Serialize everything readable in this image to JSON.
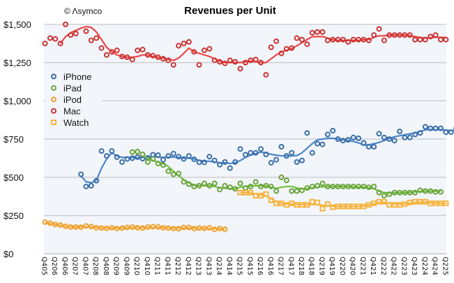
{
  "chart_data": {
    "type": "scatter",
    "title": "Revenues per Unit",
    "credit": "© Λsymco",
    "xlabel": "",
    "ylabel": "",
    "ylim": [
      0,
      1500
    ],
    "yticks": [
      "$0",
      "$250",
      "$500",
      "$750",
      "$1,000",
      "$1,250",
      "$1,500"
    ],
    "ytick_values": [
      0,
      250,
      500,
      750,
      1000,
      1250,
      1500
    ],
    "grid": true,
    "legend_position": "left",
    "x_start": "Q405",
    "x_end": "Q225",
    "xticks": [
      "Q405",
      "Q206",
      "Q406",
      "Q207",
      "Q407",
      "Q208",
      "Q408",
      "Q209",
      "Q409",
      "Q210",
      "Q410",
      "Q211",
      "Q411",
      "Q212",
      "Q412",
      "Q213",
      "Q413",
      "Q214",
      "Q414",
      "Q215",
      "Q415",
      "Q216",
      "Q416",
      "Q217",
      "Q417",
      "Q218",
      "Q418",
      "Q219",
      "Q419",
      "Q220",
      "Q420",
      "Q221",
      "Q421",
      "Q222",
      "Q422",
      "Q223",
      "Q423",
      "Q224",
      "Q424",
      "Q225"
    ],
    "series": [
      {
        "name": "iPhone",
        "color": "#3a6ea8",
        "line_color": "#4a86c8",
        "marker": "circle",
        "start_index": 7,
        "values": [
          520,
          440,
          445,
          478,
          672,
          640,
          672,
          632,
          600,
          620,
          625,
          632,
          622,
          627,
          648,
          645,
          615,
          640,
          655,
          635,
          620,
          640,
          618,
          598,
          598,
          635,
          610,
          582,
          600,
          560,
          600,
          685,
          648,
          660,
          660,
          685,
          650,
          595,
          615,
          700,
          640,
          660,
          600,
          610,
          790,
          660,
          720,
          715,
          780,
          805,
          750,
          740,
          745,
          760,
          755,
          725,
          700,
          700,
          785,
          760,
          750,
          740,
          800,
          760,
          760,
          780,
          790,
          830,
          820,
          820,
          820,
          795,
          795,
          820,
          830,
          830,
          808,
          830
        ],
        "trend": [
          510,
          470,
          465,
          480,
          560,
          620,
          660,
          640,
          630,
          630,
          630,
          628,
          630,
          630,
          635,
          632,
          630,
          632,
          632,
          630,
          625,
          625,
          620,
          612,
          605,
          605,
          600,
          595,
          595,
          590,
          595,
          610,
          630,
          645,
          655,
          665,
          660,
          650,
          645,
          640,
          640,
          640,
          642,
          660,
          690,
          720,
          745,
          750,
          755,
          755,
          750,
          745,
          740,
          735,
          725,
          710,
          712,
          720,
          728,
          740,
          755,
          765,
          772,
          778,
          784,
          790,
          800,
          810,
          812,
          810,
          812,
          808,
          806,
          810,
          815,
          818,
          815,
          815
        ]
      },
      {
        "name": "iPad",
        "color": "#6aa33a",
        "line_color": "#6fbf3c",
        "marker": "circle",
        "start_index": 17,
        "values": [
          665,
          668,
          650,
          600,
          620,
          590,
          580,
          540,
          520,
          525,
          470,
          455,
          440,
          445,
          460,
          445,
          460,
          420,
          445,
          435,
          425,
          460,
          430,
          440,
          470,
          440,
          445,
          440,
          410,
          500,
          480,
          410,
          410,
          415,
          430,
          440,
          445,
          460,
          440,
          440,
          440,
          440,
          440,
          440,
          440,
          440,
          435,
          440,
          400,
          380,
          390,
          400,
          400,
          400,
          400,
          400,
          415,
          410,
          410,
          405,
          405
        ],
        "trend": [
          null,
          null,
          640,
          625,
          610,
          600,
          590,
          570,
          540,
          510,
          485,
          465,
          448,
          445,
          445,
          445,
          440,
          432,
          428,
          425,
          425,
          435,
          442,
          443,
          445,
          445,
          443,
          435,
          428,
          435,
          440,
          440,
          430,
          425,
          425,
          430,
          435,
          438,
          440,
          440,
          440,
          440,
          440,
          438,
          436,
          436,
          432,
          425,
          410,
          400,
          398,
          398,
          398,
          400,
          402,
          405,
          408,
          410,
          410,
          410,
          410
        ]
      },
      {
        "name": "iPod",
        "color": "#f0a030",
        "line_color": "#f5b040",
        "marker": "circle",
        "start_index": 0,
        "values": [
          207,
          200,
          192,
          188,
          180,
          175,
          175,
          174,
          182,
          178,
          170,
          168,
          166,
          170,
          165,
          168,
          172,
          175,
          170,
          168,
          175,
          177,
          176,
          170,
          168,
          165,
          164,
          172,
          172,
          165,
          168,
          166,
          170,
          160,
          165,
          160
        ],
        "trend": [
          205,
          198,
          192,
          186,
          180,
          176,
          175,
          175,
          176,
          175,
          172,
          170,
          169,
          168,
          168,
          169,
          170,
          171,
          171,
          171,
          172,
          172,
          172,
          171,
          169,
          168,
          168,
          169,
          169,
          168,
          167,
          166,
          165,
          164,
          163,
          162
        ]
      },
      {
        "name": "Mac",
        "color": "#cc3333",
        "line_color": "#ee4444",
        "marker": "circle",
        "start_index": 0,
        "values": [
          1375,
          1410,
          1405,
          1375,
          1500,
          1430,
          1440,
          null,
          1455,
          1395,
          1410,
          1345,
          1300,
          1320,
          1330,
          1290,
          1285,
          1270,
          1330,
          1335,
          1300,
          1295,
          1285,
          1275,
          1265,
          1235,
          1360,
          1375,
          1385,
          1320,
          1235,
          1330,
          1340,
          1265,
          1255,
          1245,
          1265,
          1255,
          1210,
          1250,
          1265,
          1270,
          1250,
          1170,
          1350,
          1390,
          1310,
          1340,
          1345,
          1410,
          1400,
          1370,
          1445,
          1450,
          1450,
          1395,
          1400,
          1400,
          1400,
          1385,
          1400,
          1400,
          1400,
          1395,
          1430,
          1470,
          1395,
          1430,
          1430,
          1430,
          1430,
          1430,
          1400,
          1400,
          1400,
          1420,
          1430,
          1400,
          1400
        ],
        "trend": [
          null,
          null,
          null,
          1375,
          1420,
          1445,
          1460,
          1475,
          1485,
          1480,
          1450,
          1400,
          1350,
          1320,
          1300,
          1290,
          1285,
          1285,
          1290,
          1300,
          1300,
          1290,
          1285,
          1280,
          1270,
          1265,
          1280,
          1310,
          1345,
          1320,
          1310,
          1300,
          1290,
          1275,
          1260,
          1250,
          1250,
          1250,
          1250,
          1255,
          1260,
          1255,
          1250,
          1250,
          1275,
          1300,
          1320,
          1330,
          1340,
          1360,
          1380,
          1400,
          1420,
          1420,
          1420,
          1410,
          1400,
          1395,
          1395,
          1395,
          1395,
          1395,
          1400,
          1400,
          1415,
          1425,
          1425,
          1430,
          1430,
          1430,
          1430,
          1425,
          1420,
          1415,
          1410,
          1412,
          1415,
          1415,
          1415
        ]
      },
      {
        "name": "Watch",
        "color": "#f6b440",
        "line_color": "#f6b440",
        "marker": "square",
        "start_index": 38,
        "values": [
          400,
          400,
          400,
          380,
          380,
          390,
          350,
          330,
          330,
          320,
          330,
          320,
          320,
          320,
          340,
          335,
          295,
          325,
          305,
          310,
          310,
          310,
          310,
          310,
          310,
          320,
          330,
          340,
          340,
          320,
          320,
          320,
          325,
          335,
          340,
          340,
          340,
          330,
          330,
          330,
          330
        ],
        "trend": [
          400,
          400,
          398,
          392,
          385,
          378,
          360,
          340,
          330,
          325,
          325,
          323,
          322,
          322,
          322,
          320,
          318,
          315,
          312,
          310,
          310,
          310,
          310,
          310,
          312,
          318,
          326,
          334,
          336,
          330,
          326,
          324,
          326,
          330,
          336,
          338,
          338,
          334,
          332,
          330,
          330
        ]
      }
    ]
  }
}
